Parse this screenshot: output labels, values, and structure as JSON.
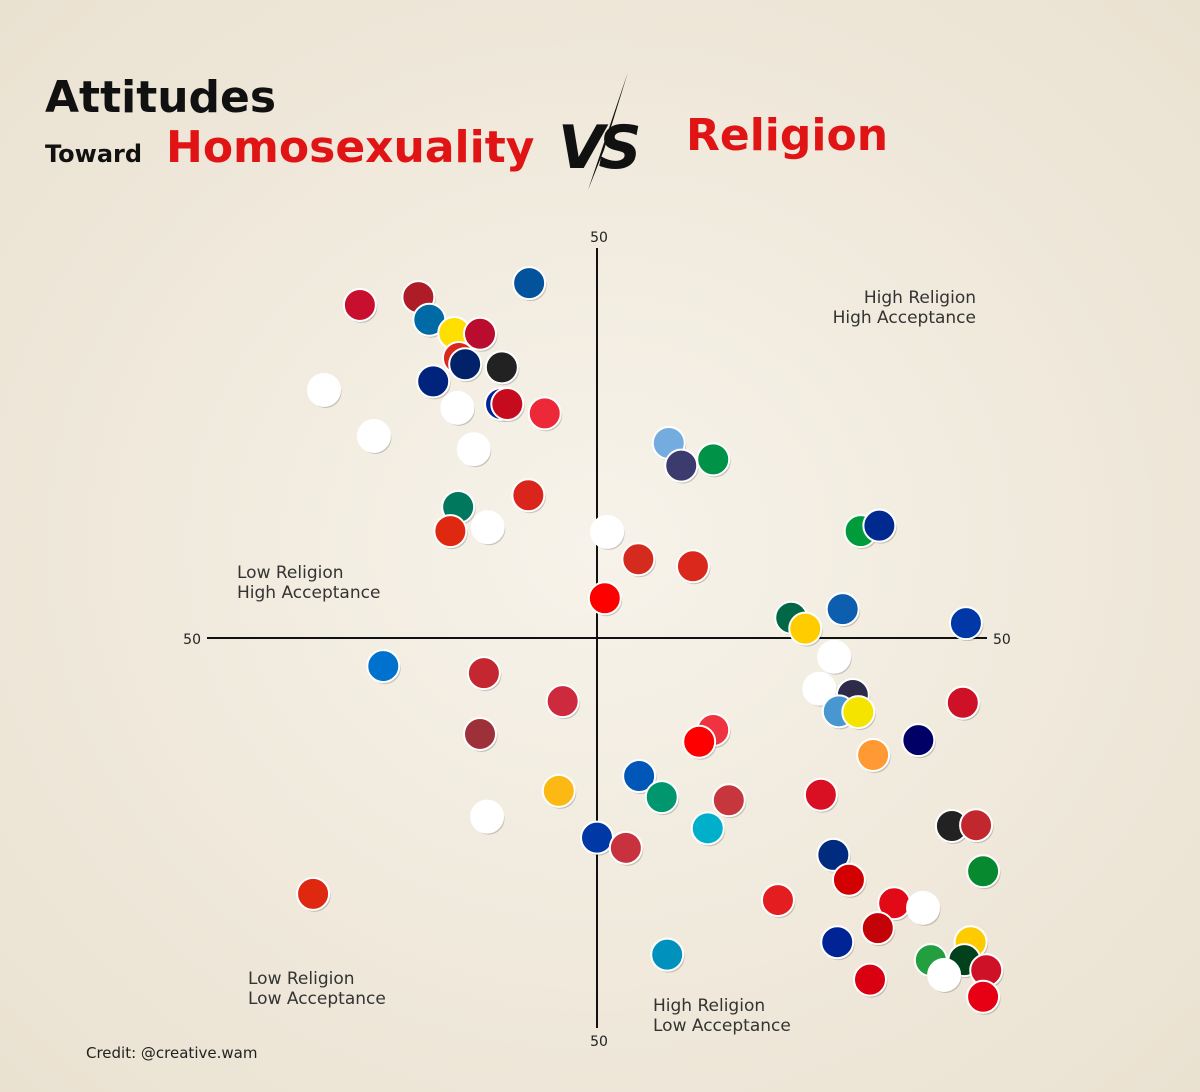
{
  "chart_data": {
    "type": "scatter",
    "title": {
      "line1": "Attitudes",
      "prefix": "Toward",
      "left": "Homosexuality",
      "vs": "VS",
      "right": "Religion"
    },
    "credit": "Credit: @creative.wam",
    "annotations": [
      {
        "lines": [
          "High Religion",
          "High Acceptance"
        ]
      },
      {
        "lines": [
          "Low Religion",
          "High Acceptance"
        ]
      },
      {
        "lines": [
          "Low Religion",
          "Low Acceptance"
        ]
      },
      {
        "lines": [
          "High Religion",
          "Low Acceptance"
        ]
      }
    ],
    "xlim": [
      -50,
      50
    ],
    "ylim": [
      -50,
      50
    ],
    "xticks": [
      {
        "value": -50,
        "label": "50"
      },
      {
        "value": 50,
        "label": "50"
      }
    ],
    "yticks": [
      {
        "value": -50,
        "label": "50"
      },
      {
        "value": 50,
        "label": "50"
      }
    ],
    "grid": false,
    "series": [
      {
        "x": [
          -30.4,
          -22.9,
          -8.7,
          -21.5,
          -18.3,
          -15.0,
          -17.7,
          -16.9,
          -12.2,
          -21.0,
          -35.0,
          -17.9,
          -12.3,
          -11.5,
          -6.7,
          -28.6,
          -15.8,
          9.2,
          10.8,
          14.9,
          -8.8,
          -17.8,
          -18.8,
          -14.0,
          1.3,
          5.3,
          12.3,
          33.8,
          36.2,
          1.0,
          24.9,
          31.5,
          26.7,
          47.3,
          -27.4,
          -14.5,
          30.4,
          -4.4,
          28.5,
          32.8,
          46.9,
          31.0,
          33.5,
          -15.0,
          14.9,
          13.1,
          41.2,
          35.4,
          5.4,
          -4.9,
          8.3,
          16.9,
          28.7,
          -14.1,
          14.2,
          45.5,
          48.6,
          0.0,
          3.7,
          30.3,
          32.3,
          49.5,
          -36.4,
          23.2,
          38.1,
          41.8,
          36.0,
          30.8,
          47.9,
          9.0,
          42.8,
          47.1,
          49.9,
          44.5,
          35.0,
          49.5
        ],
        "y": [
          42.7,
          43.7,
          45.5,
          40.8,
          39.1,
          39.0,
          35.9,
          35.1,
          34.7,
          32.9,
          31.8,
          29.5,
          30.0,
          30.0,
          28.8,
          25.9,
          24.2,
          25.0,
          22.1,
          22.9,
          18.3,
          16.8,
          13.7,
          14.2,
          13.6,
          10.1,
          9.2,
          13.7,
          14.4,
          5.1,
          2.6,
          3.7,
          1.2,
          1.9,
          -3.6,
          -4.5,
          -2.4,
          -8.1,
          -6.5,
          -7.3,
          -8.3,
          -9.4,
          -9.5,
          -12.3,
          -11.8,
          -13.3,
          -13.1,
          -15.0,
          -17.7,
          -19.6,
          -20.4,
          -20.8,
          -20.1,
          -22.9,
          -24.4,
          -24.1,
          -24.0,
          -25.6,
          -26.9,
          -27.8,
          -31.0,
          -29.9,
          -32.8,
          -33.6,
          -34.0,
          -34.6,
          -37.2,
          -39.0,
          -39.0,
          -40.6,
          -41.3,
          -41.3,
          -42.6,
          -43.2,
          -43.8,
          -46.0
        ],
        "colors": [
          "#c8102e",
          "#ae1c28",
          "#02529c",
          "#006aa7",
          "#fedf00",
          "#ba0c2f",
          "#da291c",
          "#012169",
          "#222222",
          "#00247d",
          "#ffffff",
          "#ffffff",
          "#002395",
          "#c60b1e",
          "#ed2939",
          "#ffffff",
          "#ffffff",
          "#74acdf",
          "#3c3b6e",
          "#009246",
          "#da251d",
          "#00785e",
          "#de2910",
          "#ffffff",
          "#ffffff",
          "#d52b1e",
          "#da291c",
          "#009c3b",
          "#002a8f",
          "#fe0000",
          "#006847",
          "#0d5eaf",
          "#ffcc00",
          "#0038a8",
          "#0072ce",
          "#c4272f",
          "#ffffff",
          "#cd2a3e",
          "#ffffff",
          "#2d2a4a",
          "#ce1126",
          "#4997d0",
          "#f4e400",
          "#9e3039",
          "#ef3340",
          "#ff0000",
          "#010066",
          "#ff9933",
          "#0057b7",
          "#fdb913",
          "#00966e",
          "#c6363c",
          "#d91023",
          "#ffffff",
          "#00afca",
          "#222222",
          "#c1272d",
          "#0039a6",
          "#c8313e",
          "#002b7f",
          "#d20000",
          "#078930",
          "#de2910",
          "#e41e20",
          "#e30a17",
          "#ffffff",
          "#c40308",
          "#002395",
          "#fecb00",
          "#0092bc",
          "#239f40",
          "#01411c",
          "#ce1126",
          "#ffffff",
          "#d90012",
          "#e70013"
        ]
      }
    ]
  }
}
